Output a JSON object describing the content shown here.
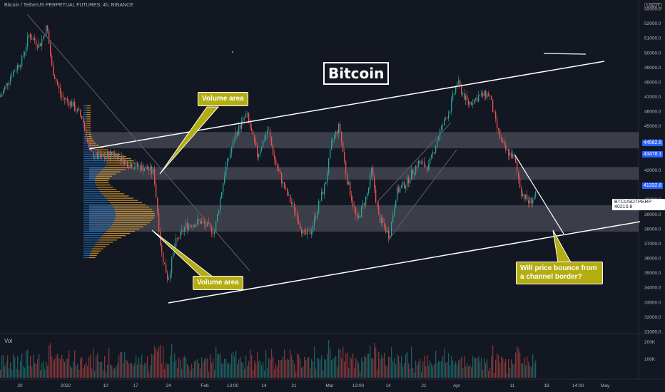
{
  "header": "Bitcoin / TetherUS PERPETUAL FUTURES, 4h, BINANCE",
  "currency_badge": "USDT",
  "title": "Bitcoin",
  "callouts": {
    "top": "Volume area",
    "bottom": "Volume area",
    "right": "Will price bounce from a channel border?"
  },
  "ticker": {
    "symbol": "BTCUSDTPERP",
    "price": "40210.8"
  },
  "price_badges": [
    {
      "label": "44582.6",
      "color": "#2962ff",
      "value": 44582.6
    },
    {
      "label": "43478.1",
      "color": "#2962ff",
      "value": 43478.1
    },
    {
      "label": "41332.6",
      "color": "#2962ff",
      "value": 41332.6
    }
  ],
  "volume_label": "Vol",
  "chart_data": {
    "type": "candlestick",
    "y_axis": {
      "ticks": [
        "53000.0",
        "52000.0",
        "51000.0",
        "50000.0",
        "49000.0",
        "48000.0",
        "47000.0",
        "46000.0",
        "45000.0",
        "44000.0",
        "43000.0",
        "42000.0",
        "41000.0",
        "40000.0",
        "39000.0",
        "38000.0",
        "37000.0",
        "36000.0",
        "35000.0",
        "34000.0",
        "33000.0",
        "32000.0",
        "31000.0"
      ],
      "range": [
        31000,
        53000
      ]
    },
    "x_axis": {
      "ticks": [
        "20",
        "2022",
        "10",
        "17",
        "24",
        "Feb",
        "13:00",
        "14",
        "21",
        "Mar",
        "13:00",
        "14",
        "21",
        "Apr",
        "11",
        "18",
        "14:00",
        "May"
      ]
    },
    "volume_axis": {
      "ticks": [
        "200K",
        "100K"
      ]
    },
    "zones": [
      {
        "from": 43478.1,
        "to": 44582.6
      },
      {
        "from": 41332.6,
        "to": 42200
      },
      {
        "from": 37800,
        "to": 39600
      }
    ],
    "channel": {
      "upper": [
        [
          125,
          209
        ],
        [
          847,
          86
        ]
      ],
      "lower": [
        [
          236,
          425
        ],
        [
          897,
          311
        ]
      ]
    },
    "price_path": [
      [
        0,
        47000
      ],
      [
        15,
        48500
      ],
      [
        30,
        49500
      ],
      [
        40,
        51200
      ],
      [
        55,
        50500
      ],
      [
        65,
        51800
      ],
      [
        72,
        49000
      ],
      [
        85,
        47000
      ],
      [
        100,
        46500
      ],
      [
        115,
        45500
      ],
      [
        125,
        43200
      ],
      [
        140,
        42800
      ],
      [
        160,
        43100
      ],
      [
        180,
        42400
      ],
      [
        205,
        42100
      ],
      [
        215,
        41800
      ],
      [
        225,
        36500
      ],
      [
        235,
        34500
      ],
      [
        245,
        37000
      ],
      [
        260,
        38200
      ],
      [
        280,
        38500
      ],
      [
        300,
        37800
      ],
      [
        315,
        42000
      ],
      [
        330,
        44500
      ],
      [
        345,
        45800
      ],
      [
        360,
        43000
      ],
      [
        375,
        44800
      ],
      [
        385,
        42500
      ],
      [
        400,
        40500
      ],
      [
        415,
        39000
      ],
      [
        425,
        37500
      ],
      [
        435,
        37800
      ],
      [
        445,
        39500
      ],
      [
        455,
        41000
      ],
      [
        465,
        44000
      ],
      [
        475,
        45000
      ],
      [
        485,
        41500
      ],
      [
        500,
        38500
      ],
      [
        515,
        40500
      ],
      [
        520,
        42000
      ],
      [
        530,
        38800
      ],
      [
        545,
        37500
      ],
      [
        555,
        40500
      ],
      [
        570,
        41200
      ],
      [
        585,
        42500
      ],
      [
        600,
        42200
      ],
      [
        615,
        44500
      ],
      [
        630,
        46200
      ],
      [
        640,
        48000
      ],
      [
        655,
        46500
      ],
      [
        670,
        47000
      ],
      [
        685,
        47200
      ],
      [
        695,
        45000
      ],
      [
        705,
        43500
      ],
      [
        720,
        42800
      ],
      [
        730,
        40500
      ],
      [
        740,
        39800
      ],
      [
        750,
        40210
      ]
    ]
  }
}
